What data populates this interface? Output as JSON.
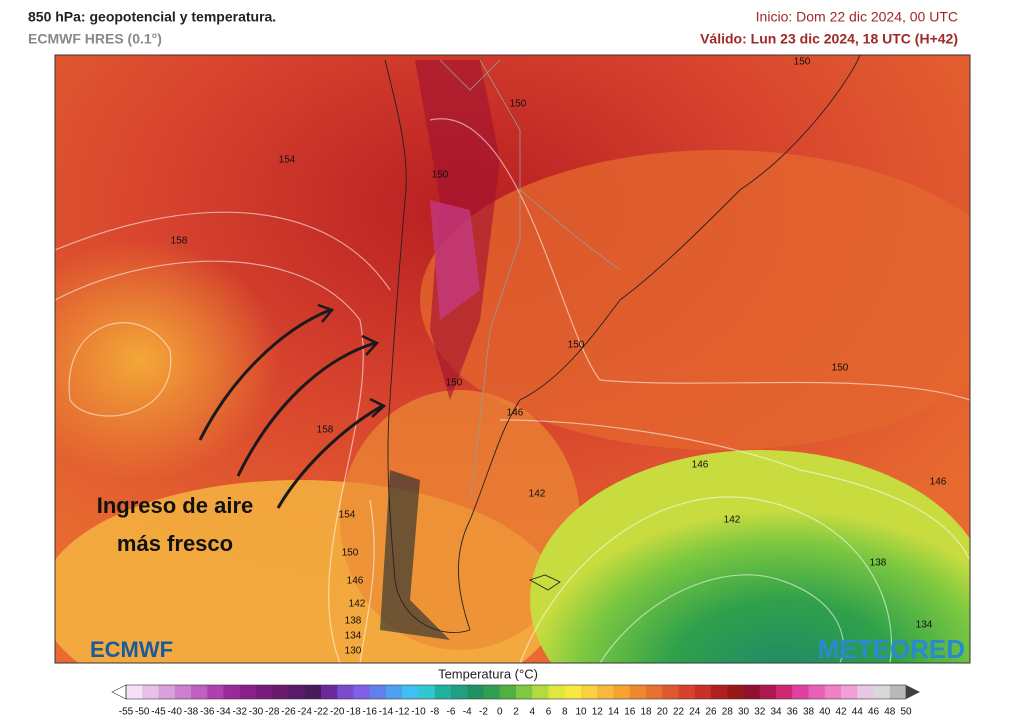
{
  "header": {
    "title": "850 hPa: geopotencial y temperatura.",
    "model": "ECMWF HRES (0.1°)",
    "init": "Inicio: Dom 22 dic 2024, 00 UTC",
    "valid": "Válido: Lun 23 dic 2024, 18 UTC (H+42)"
  },
  "map": {
    "contour_labels": [
      154,
      158,
      150,
      150,
      150,
      150,
      150,
      150,
      146,
      158,
      142,
      146,
      146,
      142,
      154,
      150,
      146,
      142,
      138,
      134,
      130,
      138,
      134
    ],
    "annotation": [
      "Ingreso de aire",
      "más fresco"
    ],
    "logos": [
      "ECMWF",
      "METEORED"
    ]
  },
  "colorbar": {
    "title": "Temperatura (°C)",
    "ticks": [
      -55,
      -50,
      -45,
      -40,
      -38,
      -36,
      -34,
      -32,
      -30,
      -28,
      -26,
      -24,
      -22,
      -20,
      -18,
      -16,
      -14,
      -12,
      -10,
      -8,
      -6,
      -4,
      -2,
      0,
      2,
      4,
      6,
      8,
      10,
      12,
      14,
      16,
      18,
      20,
      22,
      24,
      26,
      28,
      30,
      32,
      34,
      36,
      38,
      40,
      42,
      44,
      46,
      48,
      50
    ],
    "colors": [
      "#f5e0f5",
      "#e8c0e8",
      "#d9a0d9",
      "#cc80cc",
      "#bf60bf",
      "#b040b0",
      "#9a2a9a",
      "#8a1f8a",
      "#7a1a7a",
      "#6a1a6a",
      "#5a1a6a",
      "#4a1a5a",
      "#6a2a9a",
      "#7a4ad0",
      "#8060e8",
      "#6080f0",
      "#50a0f0",
      "#40c0f0",
      "#30c8d0",
      "#20b0a0",
      "#20a080",
      "#209060",
      "#30a050",
      "#50b040",
      "#80c840",
      "#b0dc40",
      "#e0e840",
      "#f8e840",
      "#f8d040",
      "#f8b840",
      "#f8a030",
      "#f08830",
      "#e87030",
      "#e05830",
      "#d84030",
      "#c83028",
      "#b02020",
      "#981818",
      "#901030",
      "#b01850",
      "#d02870",
      "#e040a0",
      "#e860b8",
      "#f080c8",
      "#f0a0d8",
      "#e8c8e8",
      "#d8d8d8",
      "#b8b8b8"
    ],
    "under_color": "#ffffff",
    "over_color": "#404040"
  }
}
